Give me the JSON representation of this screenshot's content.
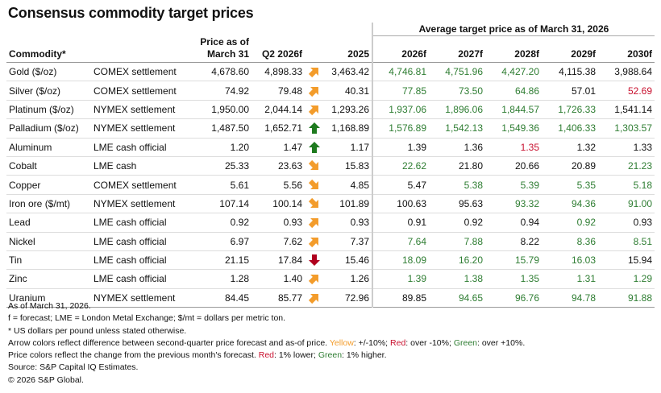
{
  "title": "Consensus commodity target prices",
  "colors": {
    "arrow_orange": "#f39c2b",
    "arrow_green": "#1e7a1e",
    "arrow_red": "#b0001e",
    "text_green": "#2e7d32",
    "text_red": "#c8102e"
  },
  "table": {
    "group_header": "Average target price as of March 31, 2026",
    "headers": {
      "commodity": "Commodity*",
      "source": "",
      "price_line1": "Price as of",
      "price_line2": "March 31",
      "q2": "Q2 2026f",
      "y2025": "2025",
      "forecast_years": [
        "2026f",
        "2027f",
        "2028f",
        "2029f",
        "2030f"
      ]
    },
    "rows": [
      {
        "commodity": "Gold ($/oz)",
        "source": "COMEX settlement",
        "price": "4,678.60",
        "q2": "4,898.33",
        "arrow": {
          "dir": "up-right",
          "color": "orange"
        },
        "y2025": "3,463.42",
        "forecasts": [
          {
            "v": "4,746.81",
            "c": "g"
          },
          {
            "v": "4,751.96",
            "c": "g"
          },
          {
            "v": "4,427.20",
            "c": "g"
          },
          {
            "v": "4,115.38",
            "c": "k"
          },
          {
            "v": "3,988.64",
            "c": "k"
          }
        ]
      },
      {
        "commodity": "Silver ($/oz)",
        "source": "COMEX settlement",
        "price": "74.92",
        "q2": "79.48",
        "arrow": {
          "dir": "up-right",
          "color": "orange"
        },
        "y2025": "40.31",
        "forecasts": [
          {
            "v": "77.85",
            "c": "g"
          },
          {
            "v": "73.50",
            "c": "g"
          },
          {
            "v": "64.86",
            "c": "g"
          },
          {
            "v": "57.01",
            "c": "k"
          },
          {
            "v": "52.69",
            "c": "r"
          }
        ]
      },
      {
        "commodity": "Platinum ($/oz)",
        "source": "NYMEX settlement",
        "price": "1,950.00",
        "q2": "2,044.14",
        "arrow": {
          "dir": "up-right",
          "color": "orange"
        },
        "y2025": "1,293.26",
        "forecasts": [
          {
            "v": "1,937.06",
            "c": "g"
          },
          {
            "v": "1,896.06",
            "c": "g"
          },
          {
            "v": "1,844.57",
            "c": "g"
          },
          {
            "v": "1,726.33",
            "c": "g"
          },
          {
            "v": "1,541.14",
            "c": "k"
          }
        ]
      },
      {
        "commodity": "Palladium ($/oz)",
        "source": "NYMEX settlement",
        "price": "1,487.50",
        "q2": "1,652.71",
        "arrow": {
          "dir": "up",
          "color": "green"
        },
        "y2025": "1,168.89",
        "forecasts": [
          {
            "v": "1,576.89",
            "c": "g"
          },
          {
            "v": "1,542.13",
            "c": "g"
          },
          {
            "v": "1,549.36",
            "c": "g"
          },
          {
            "v": "1,406.33",
            "c": "g"
          },
          {
            "v": "1,303.57",
            "c": "g"
          }
        ]
      },
      {
        "commodity": "Aluminum",
        "source": "LME cash official",
        "price": "1.20",
        "q2": "1.47",
        "arrow": {
          "dir": "up",
          "color": "green"
        },
        "y2025": "1.17",
        "forecasts": [
          {
            "v": "1.39",
            "c": "k"
          },
          {
            "v": "1.36",
            "c": "k"
          },
          {
            "v": "1.35",
            "c": "r"
          },
          {
            "v": "1.32",
            "c": "k"
          },
          {
            "v": "1.33",
            "c": "k"
          }
        ]
      },
      {
        "commodity": "Cobalt",
        "source": "LME cash",
        "price": "25.33",
        "q2": "23.63",
        "arrow": {
          "dir": "down-right",
          "color": "orange"
        },
        "y2025": "15.83",
        "forecasts": [
          {
            "v": "22.62",
            "c": "g"
          },
          {
            "v": "21.80",
            "c": "k"
          },
          {
            "v": "20.66",
            "c": "k"
          },
          {
            "v": "20.89",
            "c": "k"
          },
          {
            "v": "21.23",
            "c": "g"
          }
        ]
      },
      {
        "commodity": "Copper",
        "source": "COMEX settlement",
        "price": "5.61",
        "q2": "5.56",
        "arrow": {
          "dir": "down-right",
          "color": "orange"
        },
        "y2025": "4.85",
        "forecasts": [
          {
            "v": "5.47",
            "c": "k"
          },
          {
            "v": "5.38",
            "c": "g"
          },
          {
            "v": "5.39",
            "c": "g"
          },
          {
            "v": "5.35",
            "c": "g"
          },
          {
            "v": "5.18",
            "c": "g"
          }
        ]
      },
      {
        "commodity": "Iron ore ($/mt)",
        "source": "NYMEX settlement",
        "price": "107.14",
        "q2": "100.14",
        "arrow": {
          "dir": "down-right",
          "color": "orange"
        },
        "y2025": "101.89",
        "forecasts": [
          {
            "v": "100.63",
            "c": "k"
          },
          {
            "v": "95.63",
            "c": "k"
          },
          {
            "v": "93.32",
            "c": "g"
          },
          {
            "v": "94.36",
            "c": "g"
          },
          {
            "v": "91.00",
            "c": "g"
          }
        ]
      },
      {
        "commodity": "Lead",
        "source": "LME cash official",
        "price": "0.92",
        "q2": "0.93",
        "arrow": {
          "dir": "up-right",
          "color": "orange"
        },
        "y2025": "0.93",
        "forecasts": [
          {
            "v": "0.91",
            "c": "k"
          },
          {
            "v": "0.92",
            "c": "k"
          },
          {
            "v": "0.94",
            "c": "k"
          },
          {
            "v": "0.92",
            "c": "g"
          },
          {
            "v": "0.93",
            "c": "k"
          }
        ]
      },
      {
        "commodity": "Nickel",
        "source": "LME cash official",
        "price": "6.97",
        "q2": "7.62",
        "arrow": {
          "dir": "up-right",
          "color": "orange"
        },
        "y2025": "7.37",
        "forecasts": [
          {
            "v": "7.64",
            "c": "g"
          },
          {
            "v": "7.88",
            "c": "g"
          },
          {
            "v": "8.22",
            "c": "k"
          },
          {
            "v": "8.36",
            "c": "g"
          },
          {
            "v": "8.51",
            "c": "g"
          }
        ]
      },
      {
        "commodity": "Tin",
        "source": "LME cash official",
        "price": "21.15",
        "q2": "17.84",
        "arrow": {
          "dir": "down",
          "color": "red"
        },
        "y2025": "15.46",
        "forecasts": [
          {
            "v": "18.09",
            "c": "g"
          },
          {
            "v": "16.20",
            "c": "g"
          },
          {
            "v": "15.79",
            "c": "g"
          },
          {
            "v": "16.03",
            "c": "g"
          },
          {
            "v": "15.94",
            "c": "k"
          }
        ]
      },
      {
        "commodity": "Zinc",
        "source": "LME cash official",
        "price": "1.28",
        "q2": "1.40",
        "arrow": {
          "dir": "up-right",
          "color": "orange"
        },
        "y2025": "1.26",
        "forecasts": [
          {
            "v": "1.39",
            "c": "g"
          },
          {
            "v": "1.38",
            "c": "g"
          },
          {
            "v": "1.35",
            "c": "g"
          },
          {
            "v": "1.31",
            "c": "g"
          },
          {
            "v": "1.29",
            "c": "g"
          }
        ]
      },
      {
        "commodity": "Uranium",
        "source": "NYMEX settlement",
        "price": "84.45",
        "q2": "85.77",
        "arrow": {
          "dir": "up-right",
          "color": "orange"
        },
        "y2025": "72.96",
        "forecasts": [
          {
            "v": "89.85",
            "c": "k"
          },
          {
            "v": "94.65",
            "c": "g"
          },
          {
            "v": "96.76",
            "c": "g"
          },
          {
            "v": "94.78",
            "c": "g"
          },
          {
            "v": "91.88",
            "c": "g"
          }
        ]
      }
    ]
  },
  "notes": {
    "as_of": "As of March 31, 2026.",
    "abbrev": "f = forecast; LME = London Metal Exchange; $/mt = dollars per metric ton.",
    "units": "* US dollars per pound unless stated otherwise.",
    "arrow_intro": "Arrow colors reflect difference between second-quarter price forecast and as-of price. ",
    "arrow_yellow": "Yellow",
    "arrow_yellow_desc": ": +/-10%; ",
    "arrow_red": "Red",
    "arrow_red_desc": ": over -10%; ",
    "arrow_green": "Green",
    "arrow_green_desc": ": over +10%.",
    "price_intro": "Price colors reflect the change from the previous month's forecast. ",
    "price_red": "Red",
    "price_red_desc": ": 1% lower; ",
    "price_green": "Green",
    "price_green_desc": ": 1% higher.",
    "source": "Source: S&P Capital IQ Estimates.",
    "copyright": "© 2026 S&P Global."
  }
}
